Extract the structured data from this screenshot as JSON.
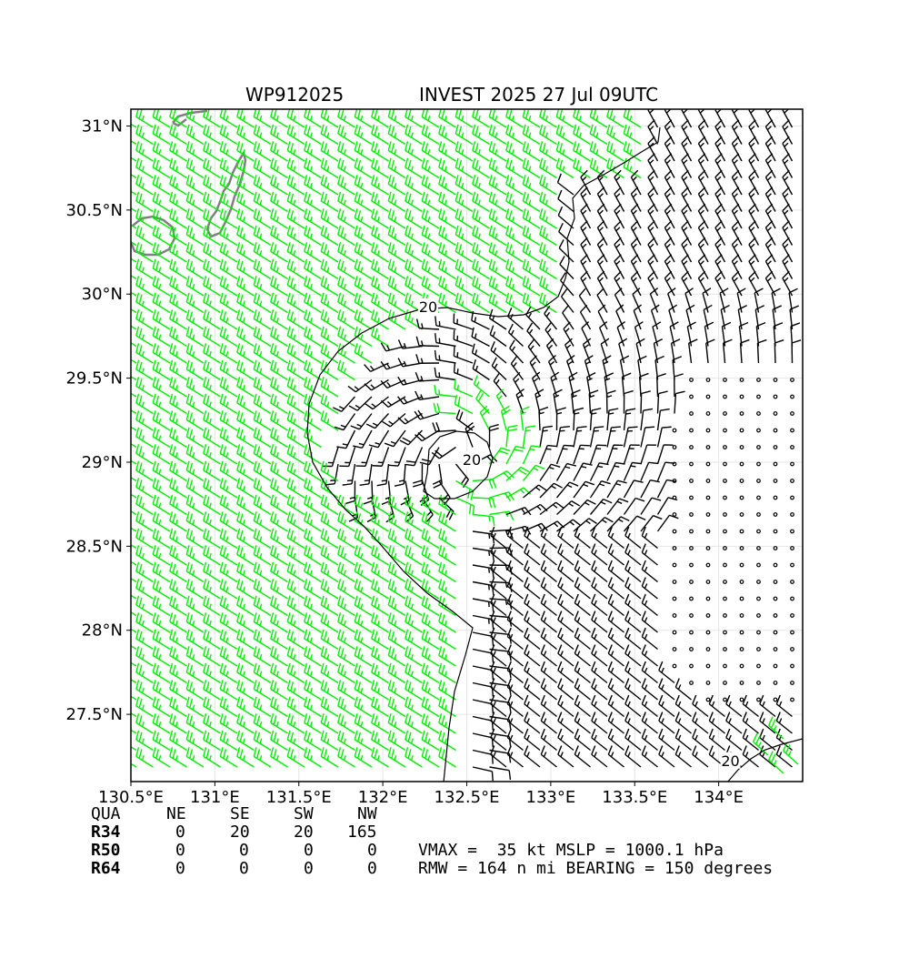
{
  "title": {
    "storm_id": "WP912025",
    "storm_info": "INVEST 2025 27 Jul 09UTC"
  },
  "axes": {
    "lon_range": [
      130.5,
      134.5
    ],
    "lat_range": [
      27.1,
      31.1
    ],
    "lon_ticks": [
      {
        "value": 130.5,
        "label": "130.5°E"
      },
      {
        "value": 131.0,
        "label": "131°E"
      },
      {
        "value": 131.5,
        "label": "131.5°E"
      },
      {
        "value": 132.0,
        "label": "132°E"
      },
      {
        "value": 132.5,
        "label": "132.5°E"
      },
      {
        "value": 133.0,
        "label": "133°E"
      },
      {
        "value": 133.5,
        "label": "133.5°E"
      },
      {
        "value": 134.0,
        "label": "134°E"
      }
    ],
    "lat_ticks": [
      {
        "value": 31.0,
        "label": "31°N"
      },
      {
        "value": 30.5,
        "label": "30.5°N"
      },
      {
        "value": 30.0,
        "label": "30°N"
      },
      {
        "value": 29.5,
        "label": "29.5°N"
      },
      {
        "value": 29.0,
        "label": "29°N"
      },
      {
        "value": 28.5,
        "label": "28.5°N"
      },
      {
        "value": 28.0,
        "label": "28°N"
      },
      {
        "value": 27.5,
        "label": "27.5°N"
      }
    ],
    "grid": true
  },
  "storm": {
    "center_lon": 132.48,
    "center_lat": 29.05
  },
  "contour_labels": [
    {
      "text": "20",
      "lon": 132.27,
      "lat": 29.92
    },
    {
      "text": "20",
      "lon": 132.53,
      "lat": 29.01
    },
    {
      "text": "20",
      "lon": 134.07,
      "lat": 27.22
    }
  ],
  "colors": {
    "strong_wind": "#00ee00",
    "weak_wind": "#000000",
    "coastline": "#808080",
    "grid": "#e6e6e6"
  },
  "radii_table": {
    "headers": [
      "QUA",
      "NE",
      "SE",
      "SW",
      "NW"
    ],
    "rows": [
      {
        "label": "R34",
        "values": [
          "0",
          "20",
          "20",
          "165"
        ]
      },
      {
        "label": "R50",
        "values": [
          "0",
          "0",
          "0",
          "0"
        ]
      },
      {
        "label": "R64",
        "values": [
          "0",
          "0",
          "0",
          "0"
        ]
      }
    ]
  },
  "info": {
    "line1": "VMAX =  35 kt MSLP = 1000.1 hPa",
    "line2": "RMW = 164 n mi BEARING = 150 degrees"
  }
}
